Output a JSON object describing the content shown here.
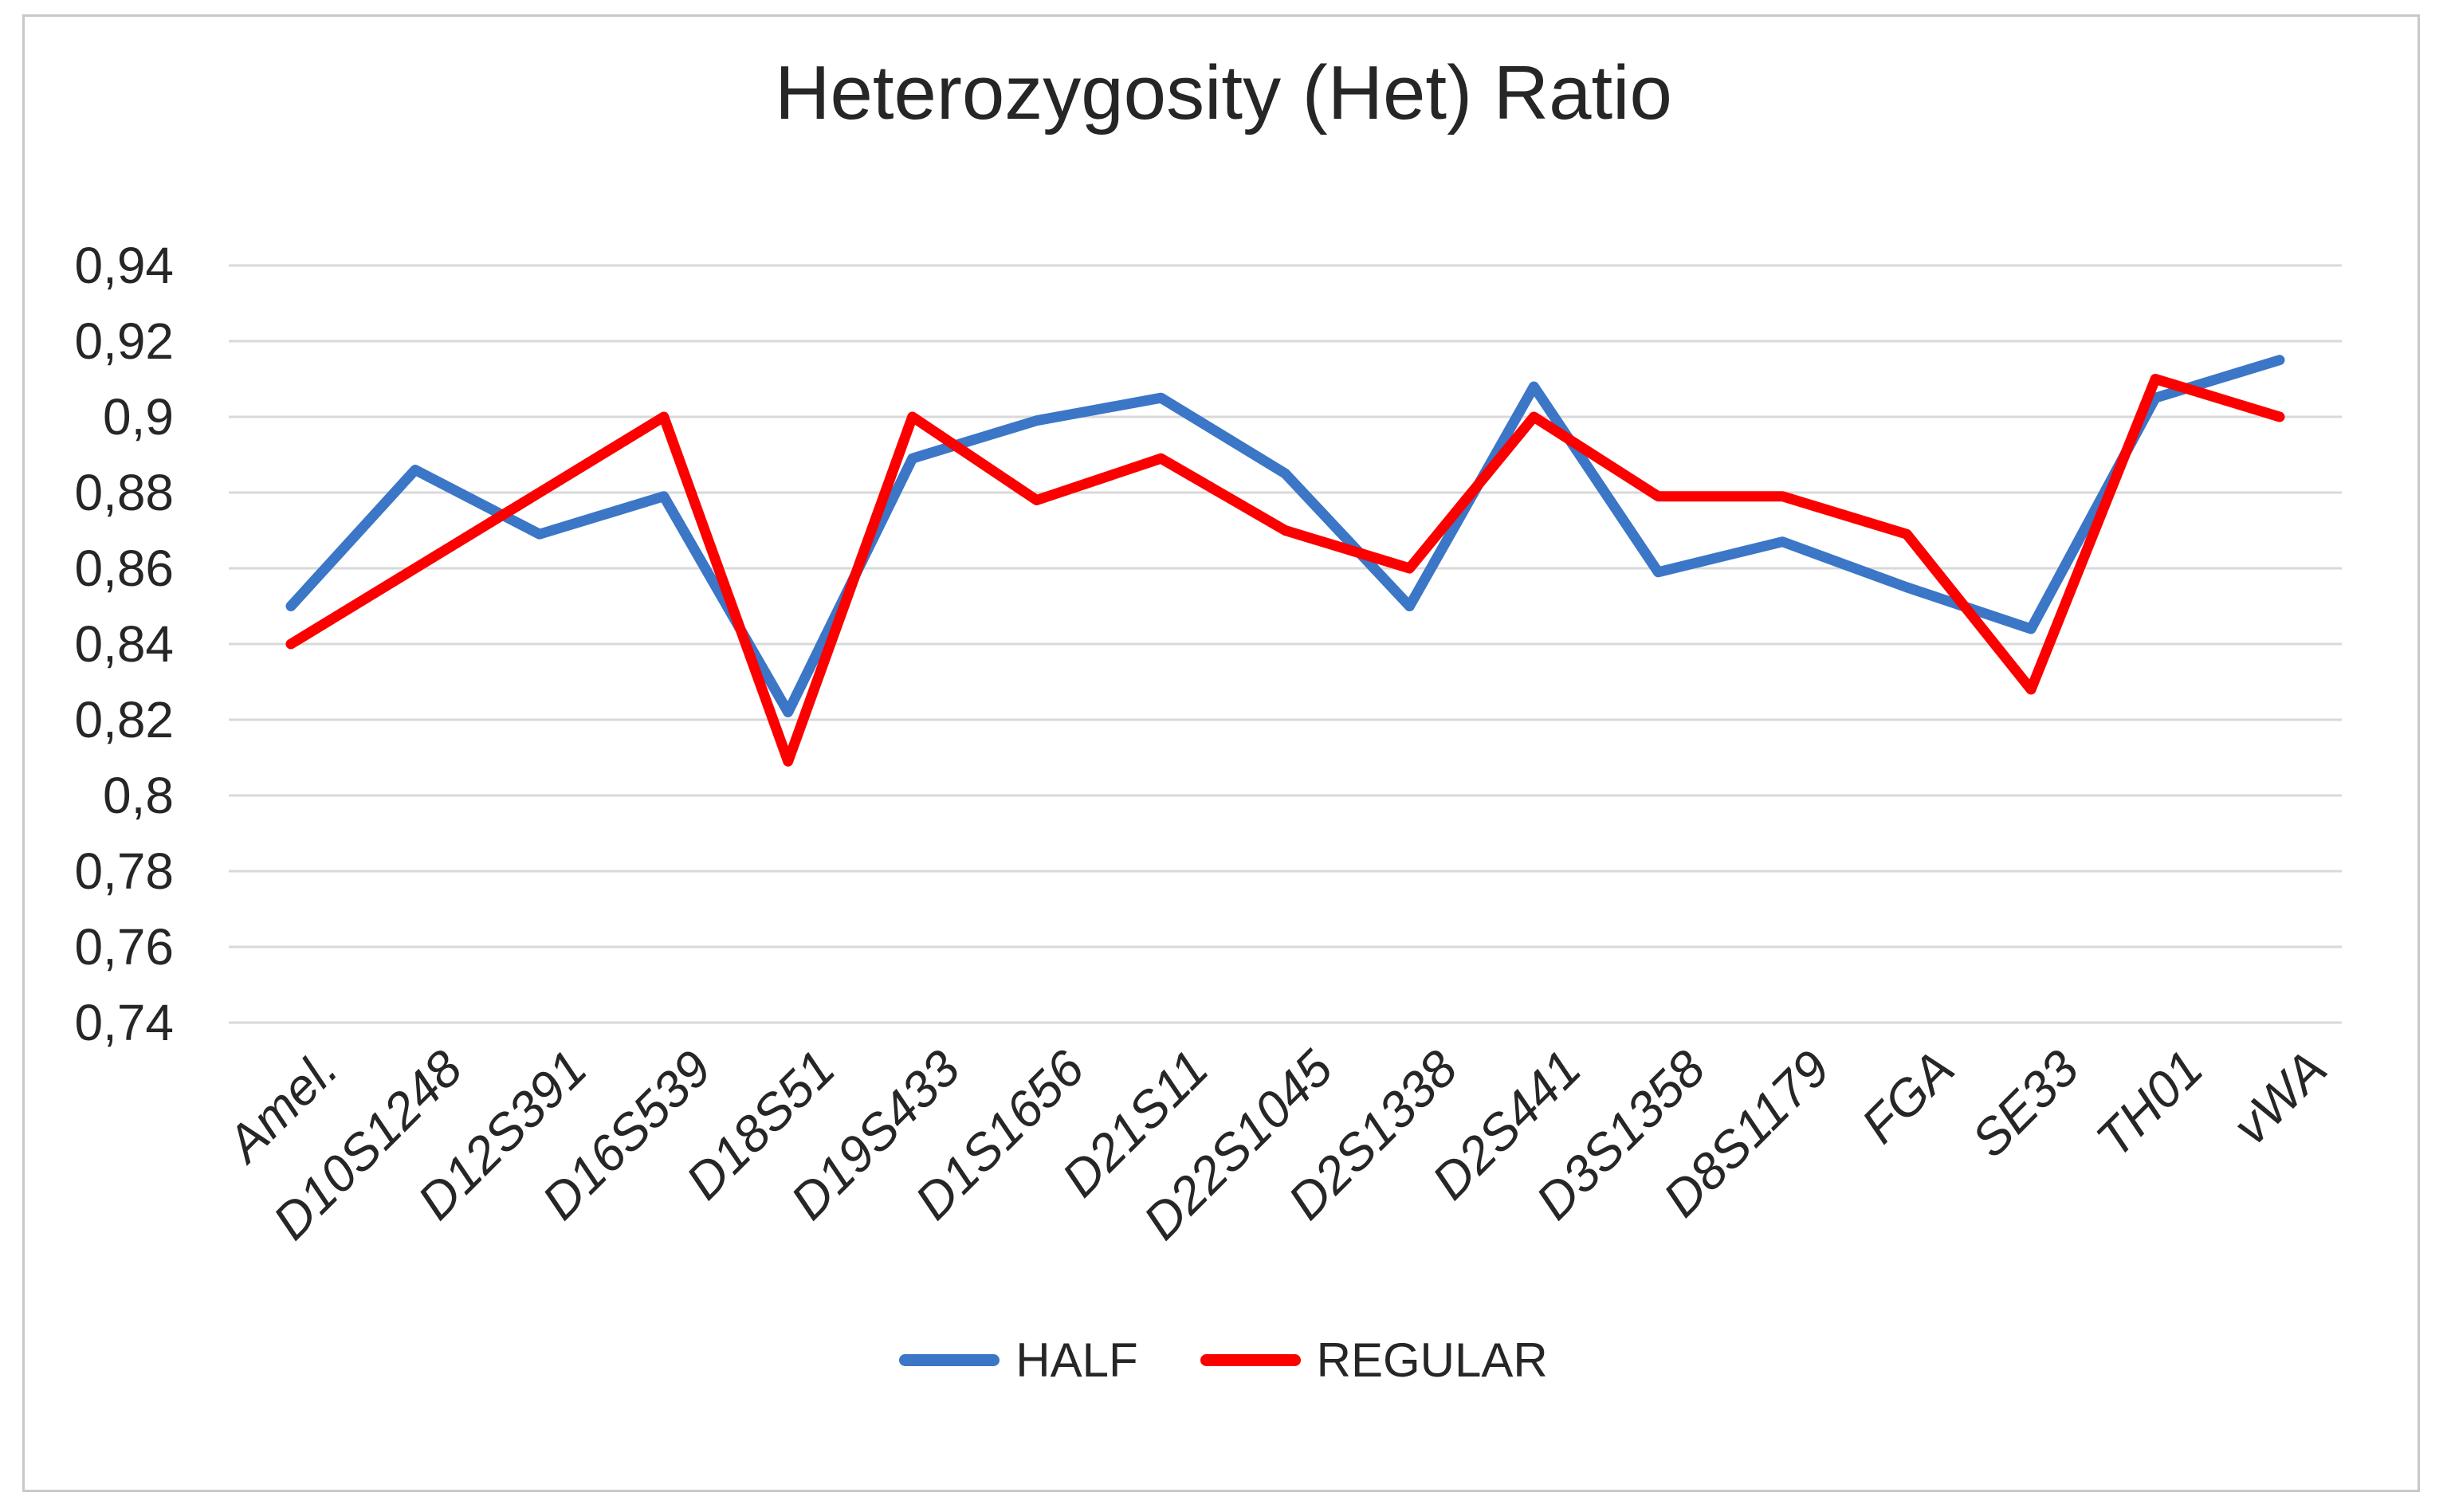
{
  "chart_data": {
    "type": "line",
    "title": "Heterozygosity (Het) Ratio",
    "categories": [
      "Amel.",
      "D10S1248",
      "D12S391",
      "D16S539",
      "D18S51",
      "D19S433",
      "D1S1656",
      "D21S11",
      "D22S1045",
      "D2S1338",
      "D2S441",
      "D3S1358",
      "D8S1179",
      "FGA",
      "SE33",
      "TH01",
      "vWA"
    ],
    "series": [
      {
        "name": "HALF",
        "color": "#3B76C7",
        "values": [
          0.85,
          0.886,
          0.869,
          0.879,
          0.822,
          0.889,
          0.899,
          0.905,
          0.885,
          0.85,
          0.908,
          0.859,
          0.867,
          0.855,
          0.844,
          0.905,
          0.915
        ]
      },
      {
        "name": "REGULAR",
        "color": "#FC0000",
        "values": [
          0.84,
          0.86,
          0.88,
          0.9,
          0.809,
          0.9,
          0.878,
          0.889,
          0.87,
          0.86,
          0.9,
          0.879,
          0.879,
          0.869,
          0.828,
          0.91,
          0.9
        ]
      }
    ],
    "y_axis": {
      "min": 0.74,
      "max": 0.94,
      "step": 0.02,
      "decimal_separator": ",",
      "tick_labels": [
        "0,94",
        "0,92",
        "0,9",
        "0,88",
        "0,86",
        "0,84",
        "0,82",
        "0,8",
        "0,78",
        "0,76",
        "0,74"
      ]
    },
    "x_axis": {
      "label_rotation_deg": 45,
      "italic": true
    },
    "legend": {
      "position": "bottom",
      "items": [
        "HALF",
        "REGULAR"
      ]
    },
    "grid": "horizontal",
    "colors": {
      "gridline": "#D9D9D9",
      "frame_border": "#C9C9C9",
      "text": "#262626",
      "background": "#FFFFFF"
    }
  }
}
